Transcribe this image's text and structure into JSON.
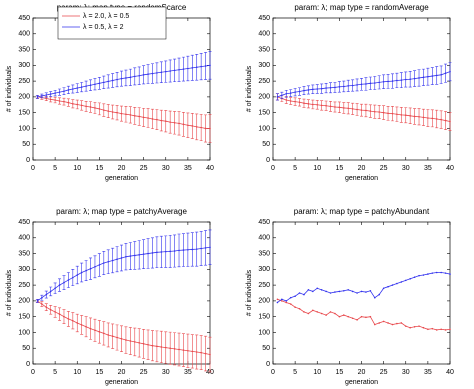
{
  "chart_data": [
    {
      "type": "line",
      "title": "param: λ;   map type = randomScarce",
      "xlabel": "generation",
      "ylabel": "# of individuals",
      "x": [
        1,
        2,
        3,
        4,
        5,
        6,
        7,
        8,
        9,
        10,
        11,
        12,
        13,
        14,
        15,
        16,
        17,
        18,
        19,
        20,
        21,
        22,
        23,
        24,
        25,
        26,
        27,
        28,
        29,
        30,
        31,
        32,
        33,
        34,
        35,
        36,
        37,
        38,
        39,
        40
      ],
      "xlim": [
        0,
        40
      ],
      "ylim": [
        0,
        450
      ],
      "xticks": [
        0,
        5,
        10,
        15,
        20,
        25,
        30,
        35,
        40
      ],
      "yticks": [
        0,
        50,
        100,
        150,
        200,
        250,
        300,
        350,
        400,
        450
      ],
      "legend": "upper left",
      "series": [
        {
          "name": "λ = 2.0, λ = 0.5",
          "color": "#e8474b",
          "values": [
            200,
            198,
            195,
            192,
            190,
            187,
            185,
            182,
            178,
            176,
            173,
            170,
            168,
            165,
            162,
            158,
            155,
            152,
            150,
            147,
            145,
            143,
            140,
            138,
            135,
            133,
            130,
            128,
            125,
            123,
            120,
            118,
            116,
            113,
            110,
            108,
            105,
            103,
            100,
            100
          ],
          "errors": [
            5,
            6,
            7,
            8,
            9,
            10,
            11,
            12,
            13,
            14,
            15,
            16,
            17,
            18,
            19,
            20,
            21,
            22,
            23,
            24,
            25,
            26,
            27,
            28,
            29,
            30,
            31,
            32,
            33,
            34,
            35,
            36,
            37,
            38,
            39,
            40,
            41,
            42,
            43,
            44
          ]
        },
        {
          "name": "λ = 0.5, λ = 2",
          "color": "#3333ee",
          "values": [
            200,
            203,
            206,
            209,
            212,
            215,
            218,
            222,
            225,
            228,
            231,
            234,
            237,
            240,
            243,
            246,
            249,
            252,
            255,
            258,
            260,
            262,
            265,
            267,
            270,
            272,
            274,
            276,
            278,
            280,
            282,
            284,
            286,
            288,
            290,
            292,
            294,
            296,
            298,
            300
          ],
          "errors": [
            5,
            6,
            7,
            8,
            9,
            10,
            11,
            12,
            13,
            14,
            15,
            16,
            17,
            18,
            19,
            20,
            21,
            22,
            23,
            24,
            25,
            26,
            27,
            28,
            29,
            30,
            31,
            32,
            33,
            34,
            35,
            36,
            37,
            38,
            39,
            40,
            41,
            42,
            43,
            44
          ]
        }
      ]
    },
    {
      "type": "line",
      "title": "param: λ;   map type = randomAverage",
      "xlabel": "generation",
      "ylabel": "# of individuals",
      "x": [
        1,
        2,
        3,
        4,
        5,
        6,
        7,
        8,
        9,
        10,
        11,
        12,
        13,
        14,
        15,
        16,
        17,
        18,
        19,
        20,
        21,
        22,
        23,
        24,
        25,
        26,
        27,
        28,
        29,
        30,
        31,
        32,
        33,
        34,
        35,
        36,
        37,
        38,
        39,
        40
      ],
      "xlim": [
        0,
        40
      ],
      "ylim": [
        0,
        450
      ],
      "xticks": [
        0,
        5,
        10,
        15,
        20,
        25,
        30,
        35,
        40
      ],
      "yticks": [
        0,
        50,
        100,
        150,
        200,
        250,
        300,
        350,
        400,
        450
      ],
      "series": [
        {
          "color": "#e8474b",
          "values": [
            200,
            195,
            190,
            187,
            185,
            183,
            180,
            178,
            176,
            175,
            173,
            172,
            170,
            168,
            167,
            165,
            164,
            162,
            160,
            158,
            157,
            155,
            153,
            152,
            150,
            148,
            147,
            145,
            143,
            142,
            140,
            138,
            137,
            135,
            133,
            132,
            130,
            128,
            125,
            122
          ],
          "errors": [
            10,
            10,
            11,
            11,
            12,
            12,
            13,
            13,
            14,
            14,
            15,
            15,
            16,
            16,
            17,
            17,
            18,
            18,
            19,
            19,
            20,
            20,
            21,
            21,
            22,
            22,
            23,
            23,
            24,
            24,
            25,
            25,
            26,
            26,
            27,
            27,
            28,
            28,
            29,
            29
          ]
        },
        {
          "color": "#3333ee",
          "values": [
            200,
            205,
            210,
            212,
            215,
            217,
            220,
            222,
            224,
            225,
            226,
            228,
            229,
            230,
            232,
            233,
            235,
            236,
            238,
            240,
            241,
            243,
            244,
            246,
            248,
            249,
            250,
            252,
            253,
            255,
            256,
            258,
            260,
            262,
            264,
            266,
            268,
            270,
            275,
            280
          ],
          "errors": [
            10,
            10,
            11,
            11,
            12,
            12,
            13,
            13,
            14,
            14,
            15,
            15,
            16,
            16,
            17,
            17,
            18,
            18,
            19,
            19,
            20,
            20,
            21,
            21,
            22,
            22,
            23,
            23,
            24,
            24,
            25,
            25,
            26,
            26,
            27,
            27,
            28,
            28,
            29,
            29
          ]
        }
      ]
    },
    {
      "type": "line",
      "title": "param: λ;   map type = patchyAverage",
      "xlabel": "generation",
      "ylabel": "# of individuals",
      "x": [
        1,
        2,
        3,
        4,
        5,
        6,
        7,
        8,
        9,
        10,
        11,
        12,
        13,
        14,
        15,
        16,
        17,
        18,
        19,
        20,
        21,
        22,
        23,
        24,
        25,
        26,
        27,
        28,
        29,
        30,
        31,
        32,
        33,
        34,
        35,
        36,
        37,
        38,
        39,
        40
      ],
      "xlim": [
        0,
        40
      ],
      "ylim": [
        0,
        450
      ],
      "xticks": [
        0,
        5,
        10,
        15,
        20,
        25,
        30,
        35,
        40
      ],
      "yticks": [
        0,
        50,
        100,
        150,
        200,
        250,
        300,
        350,
        400,
        450
      ],
      "series": [
        {
          "color": "#e8474b",
          "values": [
            200,
            190,
            180,
            172,
            165,
            158,
            150,
            143,
            137,
            130,
            124,
            118,
            112,
            107,
            102,
            97,
            92,
            88,
            84,
            80,
            76,
            73,
            70,
            67,
            64,
            61,
            58,
            56,
            54,
            52,
            50,
            48,
            46,
            44,
            42,
            40,
            38,
            36,
            33,
            30
          ],
          "errors": [
            5,
            8,
            11,
            14,
            17,
            20,
            22,
            24,
            26,
            28,
            30,
            32,
            34,
            35,
            36,
            37,
            38,
            39,
            40,
            41,
            42,
            43,
            44,
            45,
            46,
            47,
            48,
            49,
            50,
            50,
            51,
            51,
            52,
            52,
            53,
            53,
            54,
            54,
            55,
            55
          ]
        },
        {
          "color": "#3333ee",
          "values": [
            200,
            210,
            220,
            230,
            240,
            250,
            258,
            266,
            274,
            282,
            290,
            296,
            302,
            308,
            314,
            320,
            324,
            328,
            332,
            336,
            340,
            342,
            344,
            346,
            348,
            350,
            352,
            354,
            355,
            356,
            357,
            358,
            360,
            361,
            362,
            363,
            364,
            366,
            368,
            370
          ],
          "errors": [
            5,
            8,
            11,
            14,
            17,
            20,
            22,
            24,
            26,
            28,
            30,
            32,
            34,
            35,
            36,
            37,
            38,
            39,
            40,
            41,
            42,
            43,
            44,
            45,
            46,
            47,
            48,
            49,
            50,
            50,
            51,
            51,
            52,
            52,
            53,
            53,
            54,
            54,
            55,
            55
          ]
        }
      ]
    },
    {
      "type": "line",
      "title": "param: λ;   map type = patchyAbundant",
      "xlabel": "generation",
      "ylabel": "# of individuals",
      "x": [
        1,
        2,
        3,
        4,
        5,
        6,
        7,
        8,
        9,
        10,
        11,
        12,
        13,
        14,
        15,
        16,
        17,
        18,
        19,
        20,
        21,
        22,
        23,
        24,
        25,
        26,
        27,
        28,
        29,
        30,
        31,
        32,
        33,
        34,
        35,
        36,
        37,
        38,
        39,
        40
      ],
      "xlim": [
        0,
        40
      ],
      "ylim": [
        0,
        450
      ],
      "xticks": [
        0,
        5,
        10,
        15,
        20,
        25,
        30,
        35,
        40
      ],
      "yticks": [
        0,
        50,
        100,
        150,
        200,
        250,
        300,
        350,
        400,
        450
      ],
      "series": [
        {
          "color": "#e8474b",
          "values": [
            205,
            200,
            195,
            190,
            180,
            175,
            165,
            160,
            170,
            165,
            160,
            155,
            165,
            160,
            150,
            155,
            150,
            145,
            140,
            150,
            148,
            150,
            125,
            130,
            135,
            130,
            125,
            128,
            130,
            120,
            115,
            118,
            120,
            115,
            110,
            112,
            108,
            110,
            108,
            110
          ]
        },
        {
          "color": "#3333ee",
          "values": [
            195,
            205,
            200,
            210,
            215,
            225,
            220,
            235,
            230,
            240,
            235,
            230,
            225,
            228,
            230,
            232,
            235,
            230,
            225,
            230,
            228,
            232,
            210,
            220,
            240,
            245,
            250,
            255,
            260,
            265,
            270,
            275,
            280,
            282,
            285,
            288,
            290,
            290,
            288,
            285
          ]
        }
      ]
    }
  ]
}
